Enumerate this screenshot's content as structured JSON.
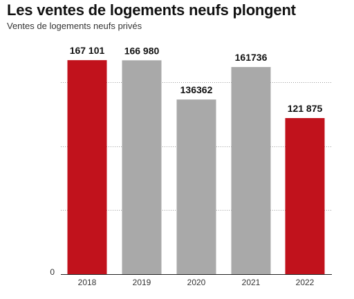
{
  "chart_data": {
    "type": "bar",
    "title": "Les ventes de logements neufs plongent",
    "subtitle": "Ventes de logements neufs privés",
    "xlabel": "",
    "ylabel": "",
    "categories": [
      "2018",
      "2019",
      "2020",
      "2021",
      "2022"
    ],
    "values": [
      167101,
      166980,
      136362,
      161736,
      121875
    ],
    "value_labels": [
      "167 101",
      "166 980",
      "136362",
      "161736",
      "121 875"
    ],
    "bar_colors": [
      "#c1121c",
      "#a9a9a9",
      "#a9a9a9",
      "#a9a9a9",
      "#c1121c"
    ],
    "ylim": [
      0,
      180000
    ],
    "y_ticks": [
      0,
      50000,
      100000,
      150000
    ],
    "y_tick_labels": [
      "0",
      "",
      "",
      ""
    ],
    "grid": "horizontal-dotted",
    "legend": "none"
  }
}
